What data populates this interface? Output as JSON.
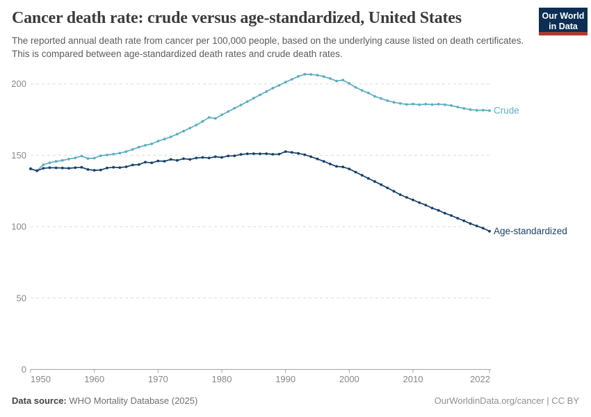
{
  "header": {
    "title": "Cancer death rate: crude versus age-standardized, United States",
    "subtitle": "The reported annual death rate from cancer per 100,000 people, based on the underlying cause listed on death certificates. This is compared between age-standardized death rates and crude death rates.",
    "logo": {
      "line1": "Our World",
      "line2": "in Data"
    }
  },
  "footer": {
    "source_label": "Data source:",
    "source_value": "WHO Mortality Database (2025)",
    "credit": "OurWorldinData.org/cancer | CC BY"
  },
  "colors": {
    "crude": "#5baec1",
    "age_standardized": "#15406b",
    "gridline": "#dcdcdc",
    "axis": "#a3a3a3",
    "tick_label": "#878787",
    "logo_bg": "#0d2e54",
    "logo_bar": "#b03a30"
  },
  "chart_data": {
    "type": "line",
    "title": "Cancer death rate: crude versus age-standardized, United States",
    "subtitle": "The reported annual death rate from cancer per 100,000 people, based on the underlying cause listed on death certificates. This is compared between age-standardized death rates and crude death rates.",
    "xlabel": "",
    "ylabel": "",
    "xlim": [
      1950,
      2022
    ],
    "ylim": [
      0,
      200
    ],
    "yticks": [
      0,
      50,
      100,
      150,
      200
    ],
    "xticks": [
      1950,
      1960,
      1970,
      1980,
      1990,
      2000,
      2010,
      2022
    ],
    "grid": "horizontal-dashed",
    "legend_position": "end-of-line-labels",
    "x": [
      1950,
      1951,
      1952,
      1953,
      1954,
      1955,
      1956,
      1957,
      1958,
      1959,
      1960,
      1961,
      1962,
      1963,
      1964,
      1965,
      1966,
      1967,
      1968,
      1969,
      1970,
      1971,
      1972,
      1973,
      1974,
      1975,
      1976,
      1977,
      1978,
      1979,
      1980,
      1981,
      1982,
      1983,
      1984,
      1985,
      1986,
      1987,
      1988,
      1989,
      1990,
      1991,
      1992,
      1993,
      1994,
      1995,
      1996,
      1997,
      1998,
      1999,
      2000,
      2001,
      2002,
      2003,
      2004,
      2005,
      2006,
      2007,
      2008,
      2009,
      2010,
      2011,
      2012,
      2013,
      2014,
      2015,
      2016,
      2017,
      2018,
      2019,
      2020,
      2021,
      2022
    ],
    "series": [
      {
        "name": "Crude",
        "color": "#5baec1",
        "values": [
          140.3,
          139.2,
          143.4,
          144.8,
          145.7,
          146.4,
          147.3,
          148.2,
          149.4,
          147.7,
          148.0,
          149.7,
          150.2,
          150.8,
          151.5,
          152.6,
          154.1,
          155.7,
          157.0,
          158.0,
          159.9,
          161.3,
          162.9,
          164.8,
          166.9,
          169.0,
          171.2,
          173.7,
          176.5,
          175.8,
          178.3,
          180.6,
          182.9,
          185.2,
          187.6,
          190.0,
          192.3,
          194.6,
          197.0,
          199.0,
          201.2,
          203.2,
          205.3,
          206.7,
          206.6,
          206.1,
          205.1,
          203.8,
          202.0,
          202.7,
          200.3,
          197.6,
          195.4,
          193.6,
          191.3,
          189.8,
          188.2,
          187.1,
          186.3,
          185.6,
          185.9,
          185.4,
          185.8,
          185.5,
          185.8,
          185.4,
          184.8,
          183.8,
          182.8,
          182.0,
          181.5,
          181.6,
          181.3
        ]
      },
      {
        "name": "Age-standardized",
        "color": "#15406b",
        "values": [
          140.6,
          139.1,
          140.9,
          141.3,
          141.2,
          141.1,
          140.9,
          141.3,
          141.6,
          140.0,
          139.5,
          139.7,
          141.1,
          141.6,
          141.4,
          141.9,
          143.2,
          143.5,
          145.2,
          144.7,
          146.0,
          145.8,
          147.1,
          146.4,
          147.6,
          147.1,
          148.1,
          148.5,
          148.1,
          149.0,
          148.5,
          149.5,
          149.6,
          150.6,
          151.0,
          151.1,
          151.0,
          151.1,
          150.7,
          150.8,
          152.6,
          152.0,
          151.3,
          150.4,
          149.0,
          147.4,
          145.7,
          143.9,
          142.2,
          141.8,
          140.4,
          138.2,
          136.0,
          133.8,
          131.6,
          129.4,
          127.1,
          124.8,
          122.4,
          120.5,
          118.7,
          116.8,
          115.1,
          113.0,
          111.4,
          109.4,
          107.8,
          105.9,
          104.1,
          102.1,
          100.5,
          98.9,
          96.8
        ]
      }
    ]
  }
}
